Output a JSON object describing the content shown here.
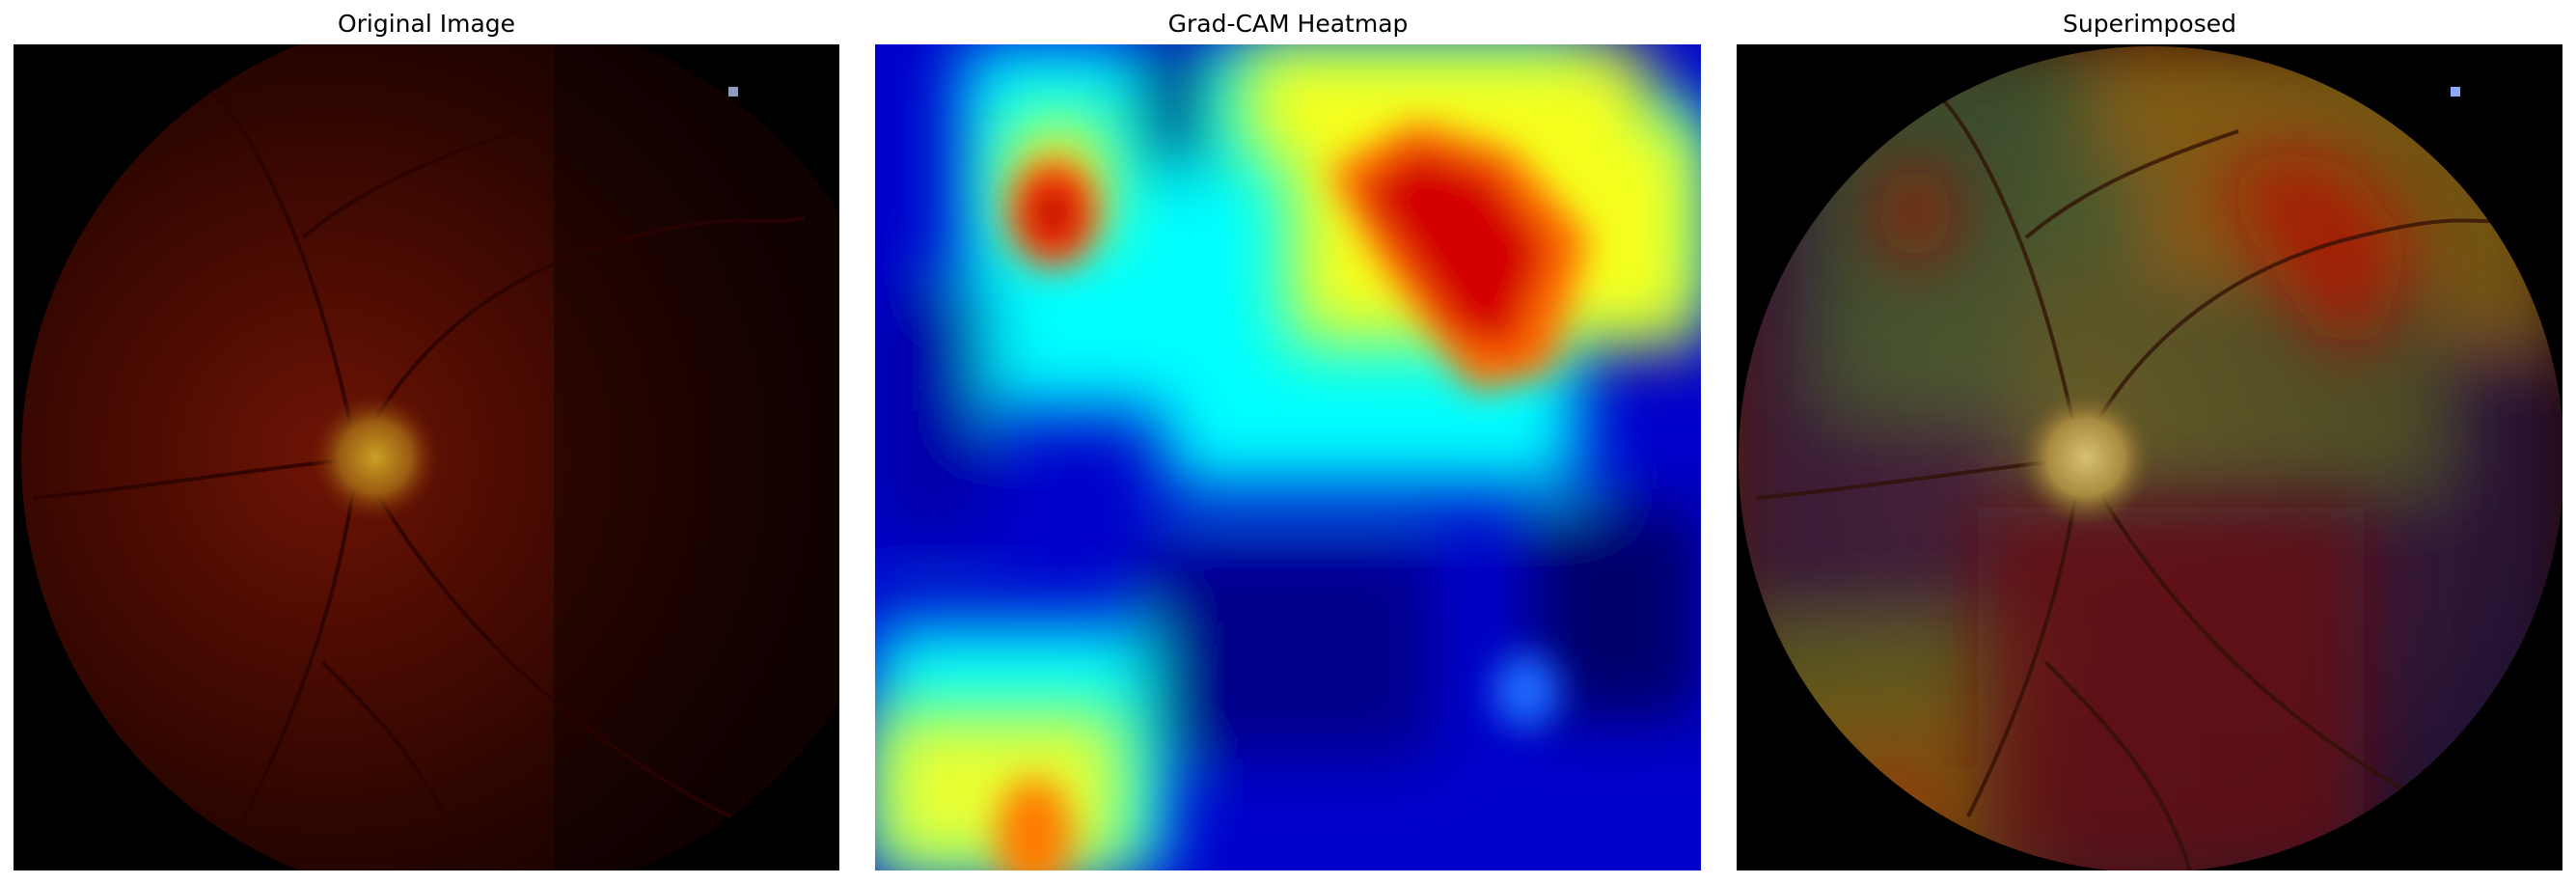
{
  "figure": {
    "panels": [
      {
        "title": "Original Image",
        "content": "retinal-fundus-photograph"
      },
      {
        "title": "Grad-CAM Heatmap",
        "content": "jet-colormap-heatmap"
      },
      {
        "title": "Superimposed",
        "content": "fundus-with-heatmap-overlay"
      }
    ]
  },
  "colors": {
    "background": "#ffffff",
    "fundus_dark": "#1a0200",
    "fundus_mid": "#5a0e02",
    "optic_disc": "#b8861a",
    "heat_low": "#0000c8",
    "heat_mid": "#00ffff",
    "heat_high_yellow": "#f2ff1c",
    "heat_peak": "#c00000"
  }
}
